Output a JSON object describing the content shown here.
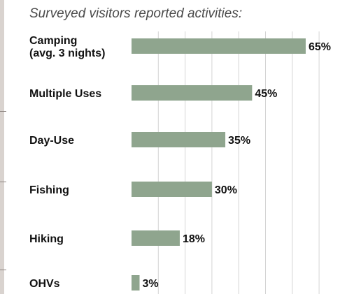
{
  "title": "Surveyed visitors reported activities:",
  "chart_data": {
    "type": "bar",
    "orientation": "horizontal",
    "title": "Surveyed visitors reported activities:",
    "categories": [
      [
        "Camping",
        "(avg. 3 nights)"
      ],
      [
        "Multiple Uses"
      ],
      [
        "Day-Use"
      ],
      [
        "Fishing"
      ],
      [
        "Hiking"
      ],
      [
        "OHVs"
      ]
    ],
    "values": [
      65,
      45,
      35,
      30,
      18,
      3
    ],
    "value_labels": [
      "65%",
      "45%",
      "35%",
      "30%",
      "18%",
      "3%"
    ],
    "xlim": [
      0,
      70
    ],
    "grid": true,
    "bar_color": "#8fa58e",
    "grid_color": "#d4d4d4"
  }
}
